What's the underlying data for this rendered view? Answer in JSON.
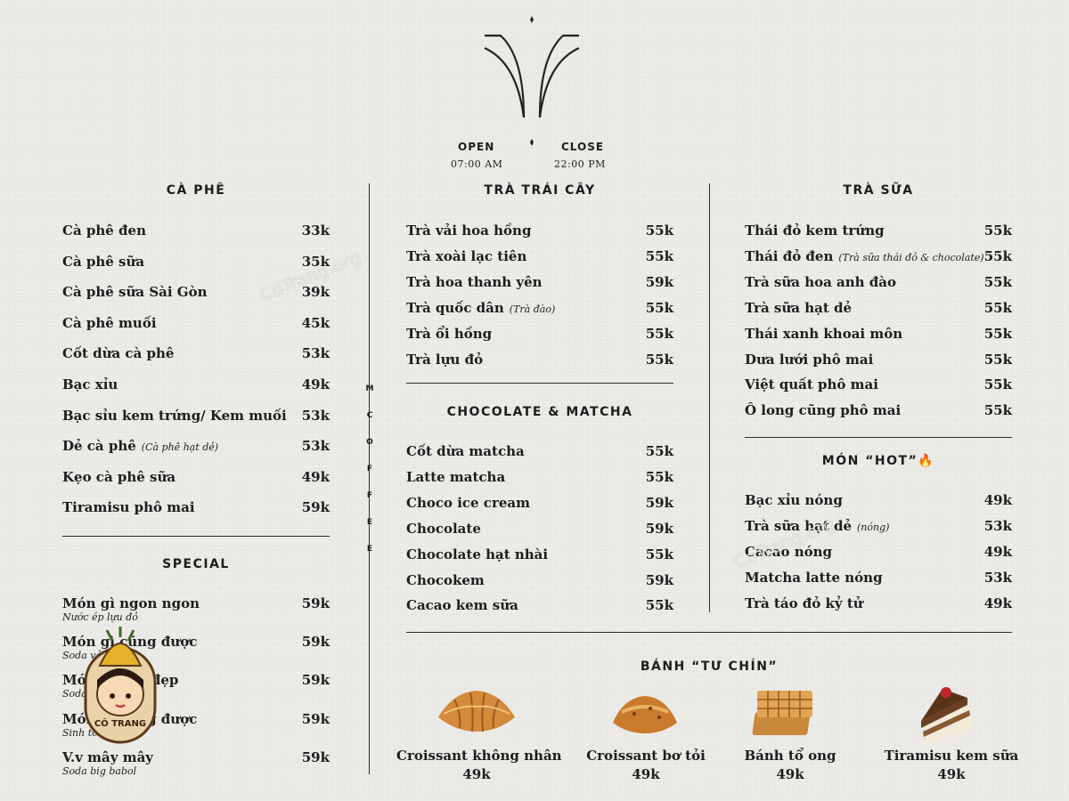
{
  "header": {
    "open_label": "OPEN",
    "open_time": "07:00 AM",
    "close_label": "CLOSE",
    "close_time": "22:00 PM"
  },
  "side_text": [
    "M",
    "C",
    "O",
    "F",
    "F",
    "E",
    "E"
  ],
  "watermark": "CoTrang.org",
  "badge_text": "CÔ TRANG",
  "sections": {
    "ca_phe": {
      "title": "CÀ PHÊ",
      "items": [
        {
          "name": "Cà phê đen",
          "price": "33k",
          "note": ""
        },
        {
          "name": "Cà phê sữa",
          "price": "35k",
          "note": ""
        },
        {
          "name": "Cà phê sữa Sài Gòn",
          "price": "39k",
          "note": ""
        },
        {
          "name": "Cà phê muối",
          "price": "45k",
          "note": ""
        },
        {
          "name": "Cốt dừa cà phê",
          "price": "53k",
          "note": ""
        },
        {
          "name": "Bạc xỉu",
          "price": "49k",
          "note": ""
        },
        {
          "name": "Bạc sỉu kem trứng/ Kem muối",
          "price": "53k",
          "note": ""
        },
        {
          "name": "Dẻ cà phê",
          "price": "53k",
          "note": "(Cà phê hạt dẻ)"
        },
        {
          "name": "Kẹo cà phê sữa",
          "price": "49k",
          "note": ""
        },
        {
          "name": "Tiramisu phô mai",
          "price": "59k",
          "note": ""
        }
      ]
    },
    "special": {
      "title": "SPECIAL",
      "items": [
        {
          "name": "Món gì ngon ngon",
          "price": "59k",
          "sub": "Nước ép lựu đỏ"
        },
        {
          "name": "Món gì cũng được",
          "price": "59k",
          "sub": "Soda vải hồng"
        },
        {
          "name": "Món gì đẹp đẹp",
          "price": "59k",
          "sub": "Soda lựu đỏ"
        },
        {
          "name": "Món gì cũng được",
          "price": "59k",
          "sub": "Sinh tố dừa dứa"
        },
        {
          "name": "V.v mây mây",
          "price": "59k",
          "sub": "Soda big babol"
        }
      ]
    },
    "tra_trai_cay": {
      "title": "TRÀ TRÁI CÂY",
      "items": [
        {
          "name": "Trà vải hoa hồng",
          "price": "55k",
          "note": ""
        },
        {
          "name": "Trà xoài lạc tiên",
          "price": "55k",
          "note": ""
        },
        {
          "name": "Trà hoa thanh yên",
          "price": "59k",
          "note": ""
        },
        {
          "name": "Trà quốc dân",
          "price": "55k",
          "note": "(Trà đào)"
        },
        {
          "name": "Trà ổi hồng",
          "price": "55k",
          "note": ""
        },
        {
          "name": "Trà lựu đỏ",
          "price": "55k",
          "note": ""
        }
      ]
    },
    "chocolate_matcha": {
      "title": "CHOCOLATE & MATCHA",
      "items": [
        {
          "name": "Cốt dừa matcha",
          "price": "55k",
          "note": ""
        },
        {
          "name": "Latte matcha",
          "price": "55k",
          "note": ""
        },
        {
          "name": "Choco ice cream",
          "price": "59k",
          "note": ""
        },
        {
          "name": "Chocolate",
          "price": "59k",
          "note": ""
        },
        {
          "name": "Chocolate hạt nhài",
          "price": "55k",
          "note": ""
        },
        {
          "name": "Chocokem",
          "price": "59k",
          "note": ""
        },
        {
          "name": "Cacao kem sữa",
          "price": "55k",
          "note": ""
        }
      ]
    },
    "tra_sua": {
      "title": "TRÀ SỮA",
      "items": [
        {
          "name": "Thái đỏ kem trứng",
          "price": "55k",
          "note": ""
        },
        {
          "name": "Thái đỏ đen",
          "price": "55k",
          "note": "(Trà sữa thái đỏ & chocolate)"
        },
        {
          "name": "Trà sữa hoa anh đào",
          "price": "55k",
          "note": ""
        },
        {
          "name": "Trà sữa hạt dẻ",
          "price": "55k",
          "note": ""
        },
        {
          "name": "Thái xanh khoai môn",
          "price": "55k",
          "note": ""
        },
        {
          "name": "Dưa lưới phô mai",
          "price": "55k",
          "note": ""
        },
        {
          "name": "Việt quất phô mai",
          "price": "55k",
          "note": ""
        },
        {
          "name": "Ô long cũng phô mai",
          "price": "55k",
          "note": ""
        }
      ]
    },
    "mon_hot": {
      "title": "MÓN “HOT”🔥",
      "items": [
        {
          "name": "Bạc xỉu nóng",
          "price": "49k",
          "note": ""
        },
        {
          "name": "Trà sữa hạt dẻ",
          "price": "53k",
          "note": "(nóng)"
        },
        {
          "name": "Cacao nóng",
          "price": "49k",
          "note": ""
        },
        {
          "name": "Matcha latte nóng",
          "price": "53k",
          "note": ""
        },
        {
          "name": "Trà táo đỏ kỷ tử",
          "price": "49k",
          "note": ""
        }
      ]
    },
    "banh": {
      "title": "BÁNH “TƯ CHÍN”",
      "items": [
        {
          "name": "Croissant không nhân",
          "price": "49k",
          "image": "croissant"
        },
        {
          "name": "Croissant bơ tỏi",
          "price": "49k",
          "image": "garlic-croissant"
        },
        {
          "name": "Bánh tổ ong",
          "price": "49k",
          "image": "waffle"
        },
        {
          "name": "Tiramisu kem sữa",
          "price": "49k",
          "image": "tiramisu-slice"
        }
      ]
    }
  }
}
